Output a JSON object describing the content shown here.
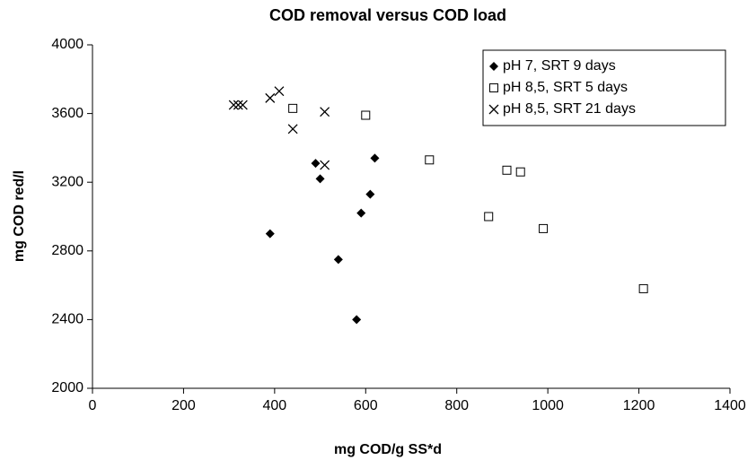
{
  "chart_data": {
    "type": "scatter",
    "title": "COD removal versus COD load",
    "x_label": "mg COD/g SS*d",
    "y_label": "mg COD red/l",
    "xlim": [
      0,
      1400
    ],
    "ylim": [
      2000,
      4000
    ],
    "xticks": [
      0,
      200,
      400,
      600,
      800,
      1000,
      1200,
      1400
    ],
    "yticks": [
      2000,
      2400,
      2800,
      3200,
      3600,
      4000
    ],
    "legend": "upper right",
    "series": [
      {
        "name": "pH 7, SRT 9 days",
        "marker": "diamond",
        "color": "#000000",
        "x": [
          390,
          490,
          500,
          540,
          580,
          590,
          610,
          620
        ],
        "values": [
          2900,
          3310,
          3220,
          2750,
          2400,
          3020,
          3130,
          3340
        ]
      },
      {
        "name": "pH 8,5, SRT 5 days",
        "marker": "square",
        "color": "#000000",
        "x": [
          440,
          600,
          740,
          870,
          910,
          940,
          990,
          1210
        ],
        "values": [
          3630,
          3590,
          3330,
          3000,
          3270,
          3260,
          2930,
          2580
        ]
      },
      {
        "name": "pH 8,5, SRT 21 days",
        "marker": "x",
        "color": "#000000",
        "x": [
          310,
          320,
          330,
          390,
          410,
          440,
          510,
          510
        ],
        "values": [
          3650,
          3650,
          3650,
          3690,
          3730,
          3510,
          3610,
          3300
        ]
      }
    ]
  }
}
